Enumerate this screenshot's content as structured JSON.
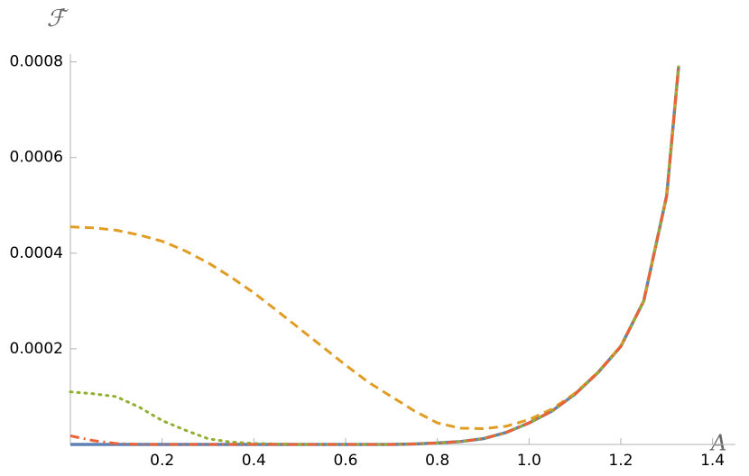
{
  "chart_data": {
    "type": "line",
    "x_label": "A",
    "y_label": "ℱ̇",
    "x": [
      0,
      0.05,
      0.1,
      0.15,
      0.2,
      0.25,
      0.3,
      0.35,
      0.4,
      0.45,
      0.5,
      0.55,
      0.6,
      0.65,
      0.7,
      0.75,
      0.8,
      0.85,
      0.9,
      0.95,
      1.0,
      1.05,
      1.1,
      1.15,
      1.2,
      1.25,
      1.3,
      1.326
    ],
    "series": [
      {
        "color": "#5e81b5",
        "dash": "solid",
        "values": [
          0,
          0,
          0,
          0,
          0,
          0,
          0,
          0,
          0,
          0,
          0,
          0,
          0,
          0,
          0,
          1e-06,
          3e-06,
          6e-06,
          1.2e-05,
          2.5e-05,
          4.5e-05,
          7e-05,
          0.000105,
          0.00015,
          0.000205,
          0.0003,
          0.00052,
          0.00079
        ]
      },
      {
        "color": "#e19c24",
        "dash": "dashed",
        "values": [
          0.000455,
          0.000453,
          0.000448,
          0.000438,
          0.000425,
          0.000405,
          0.00038,
          0.00035,
          0.000317,
          0.00028,
          0.000242,
          0.000204,
          0.000166,
          0.00013,
          0.0001,
          7e-05,
          4.5e-05,
          3.4e-05,
          3.3e-05,
          3.8e-05,
          5.2e-05,
          7.4e-05,
          0.000107,
          0.000151,
          0.000206,
          0.0003,
          0.00052,
          0.00079
        ]
      },
      {
        "color": "#8fb032",
        "dash": "dotted",
        "values": [
          0.00011,
          0.000106,
          0.0001,
          7.8e-05,
          5e-05,
          3e-05,
          1.2e-05,
          5e-06,
          2e-06,
          1e-06,
          0,
          0,
          0,
          0,
          0,
          1e-06,
          3e-06,
          6e-06,
          1.2e-05,
          2.5e-05,
          4.5e-05,
          7e-05,
          0.000105,
          0.00015,
          0.000205,
          0.0003,
          0.00052,
          0.00079
        ]
      },
      {
        "color": "#eb6235",
        "dash": "dashdot",
        "values": [
          1.8e-05,
          8e-06,
          2e-06,
          0,
          0,
          0,
          0,
          0,
          0,
          0,
          0,
          0,
          0,
          0,
          0,
          1e-06,
          3e-06,
          6e-06,
          1.2e-05,
          2.5e-05,
          4.5e-05,
          7e-05,
          0.000105,
          0.00015,
          0.000205,
          0.0003,
          0.00052,
          0.00079
        ]
      }
    ],
    "xlim": [
      0,
      1.45
    ],
    "ylim": [
      0,
      0.000805
    ],
    "xticks": [
      0.2,
      0.4,
      0.6,
      0.8,
      {
        "value": 1,
        "label": "1.0"
      },
      1.2,
      1.4
    ],
    "yticks": [
      0.0002,
      0.0004,
      0.0006,
      0.0008
    ]
  }
}
